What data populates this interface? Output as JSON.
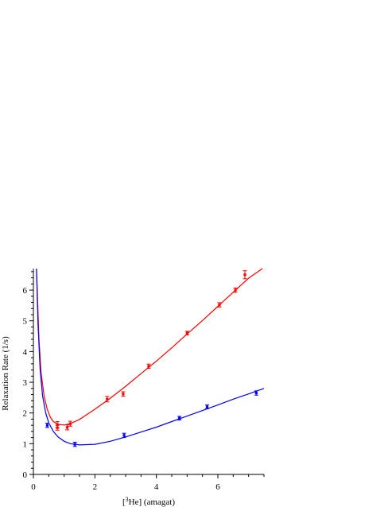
{
  "chart_data": {
    "type": "scatter",
    "title": "",
    "xlabel_parts": [
      "[",
      "3",
      "He] (amagat)"
    ],
    "ylabel": "Relaxation Rate (1/s)",
    "xlim": [
      0,
      7.5
    ],
    "ylim": [
      0,
      6.7
    ],
    "xticks": [
      0,
      2,
      4,
      6
    ],
    "xtick_labels": [
      "0",
      "2",
      "4",
      "6"
    ],
    "yticks": [
      0,
      1,
      2,
      3,
      4,
      5,
      6
    ],
    "ytick_labels": [
      "0",
      "1",
      "2",
      "3",
      "4",
      "5",
      "6"
    ],
    "grid": false,
    "legend": "none",
    "series": [
      {
        "color": "#ff0000",
        "points": [
          {
            "x": 0.78,
            "y": 1.62,
            "err": 0.1
          },
          {
            "x": 0.78,
            "y": 1.52,
            "err": 0.08
          },
          {
            "x": 1.1,
            "y": 1.53,
            "err": 0.08
          },
          {
            "x": 1.2,
            "y": 1.65,
            "err": 0.08
          },
          {
            "x": 2.4,
            "y": 2.45,
            "err": 0.09
          },
          {
            "x": 2.92,
            "y": 2.62,
            "err": 0.07
          },
          {
            "x": 3.75,
            "y": 3.52,
            "err": 0.07
          },
          {
            "x": 5.0,
            "y": 4.6,
            "err": 0.06
          },
          {
            "x": 6.05,
            "y": 5.52,
            "err": 0.07
          },
          {
            "x": 6.57,
            "y": 6.0,
            "err": 0.07
          },
          {
            "x": 6.88,
            "y": 6.5,
            "err": 0.13
          }
        ],
        "fit_curve": [
          [
            0.1,
            6.7
          ],
          [
            0.18,
            4.4
          ],
          [
            0.25,
            3.3
          ],
          [
            0.35,
            2.55
          ],
          [
            0.45,
            2.12
          ],
          [
            0.55,
            1.86
          ],
          [
            0.65,
            1.72
          ],
          [
            0.8,
            1.63
          ],
          [
            1.0,
            1.61
          ],
          [
            1.2,
            1.65
          ],
          [
            1.5,
            1.79
          ],
          [
            2.0,
            2.12
          ],
          [
            2.5,
            2.48
          ],
          [
            3.0,
            2.87
          ],
          [
            3.5,
            3.28
          ],
          [
            4.0,
            3.69
          ],
          [
            4.5,
            4.12
          ],
          [
            5.0,
            4.57
          ],
          [
            5.5,
            5.01
          ],
          [
            6.0,
            5.47
          ],
          [
            6.5,
            5.93
          ],
          [
            7.0,
            6.39
          ],
          [
            7.45,
            6.72
          ]
        ]
      },
      {
        "color": "#0000ff",
        "points": [
          {
            "x": 0.45,
            "y": 1.6,
            "err": 0.07
          },
          {
            "x": 1.35,
            "y": 0.98,
            "err": 0.07
          },
          {
            "x": 2.95,
            "y": 1.27,
            "err": 0.07
          },
          {
            "x": 4.75,
            "y": 1.83,
            "err": 0.06
          },
          {
            "x": 5.65,
            "y": 2.2,
            "err": 0.06
          },
          {
            "x": 7.25,
            "y": 2.65,
            "err": 0.07
          }
        ],
        "fit_curve": [
          [
            0.1,
            6.7
          ],
          [
            0.15,
            4.9
          ],
          [
            0.22,
            3.4
          ],
          [
            0.3,
            2.55
          ],
          [
            0.4,
            2.0
          ],
          [
            0.5,
            1.68
          ],
          [
            0.65,
            1.4
          ],
          [
            0.8,
            1.22
          ],
          [
            1.0,
            1.08
          ],
          [
            1.2,
            1.0
          ],
          [
            1.5,
            0.96
          ],
          [
            2.0,
            0.98
          ],
          [
            2.5,
            1.08
          ],
          [
            3.0,
            1.22
          ],
          [
            3.5,
            1.38
          ],
          [
            4.0,
            1.54
          ],
          [
            4.5,
            1.72
          ],
          [
            5.0,
            1.9
          ],
          [
            5.5,
            2.08
          ],
          [
            6.0,
            2.26
          ],
          [
            6.5,
            2.45
          ],
          [
            7.0,
            2.62
          ],
          [
            7.5,
            2.8
          ]
        ]
      }
    ]
  }
}
